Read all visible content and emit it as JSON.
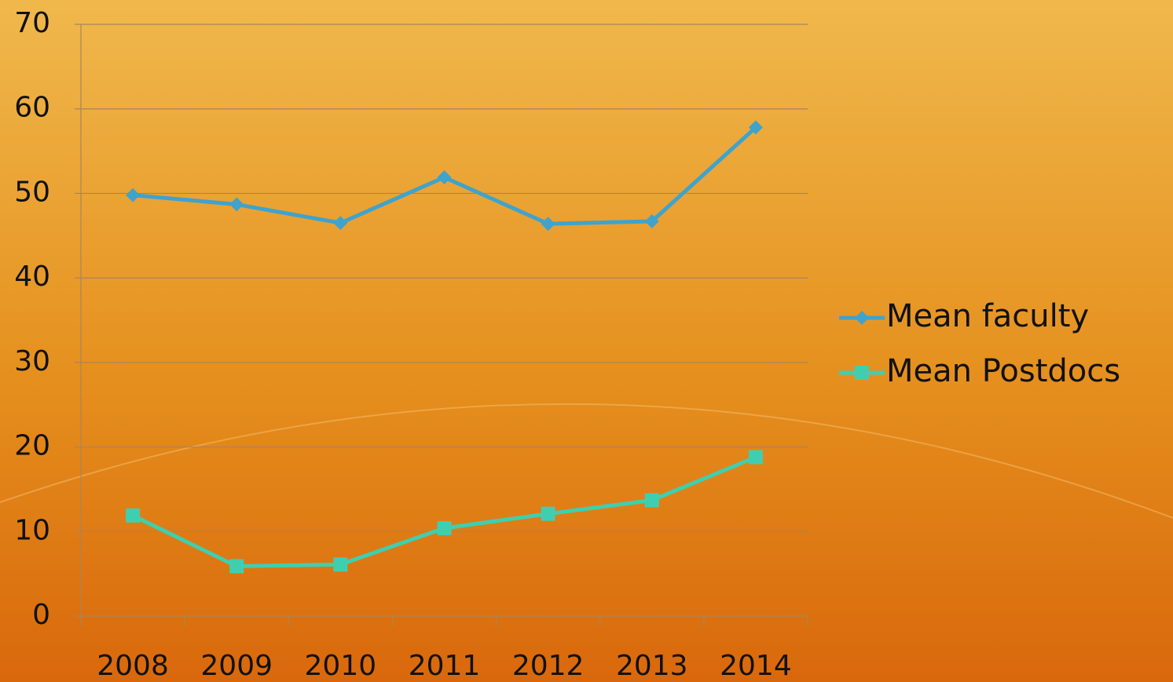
{
  "chart_data": {
    "type": "line",
    "categories": [
      "2008",
      "2009",
      "2010",
      "2011",
      "2012",
      "2013",
      "2014"
    ],
    "series": [
      {
        "name": "Mean faculty",
        "color": "#3fa3cc",
        "marker": "diamond",
        "values": [
          49.8,
          48.7,
          46.5,
          51.9,
          46.4,
          46.7,
          57.8
        ]
      },
      {
        "name": "Mean Postdocs",
        "color": "#3fcfb0",
        "marker": "square",
        "values": [
          11.9,
          5.9,
          6.1,
          10.4,
          12.1,
          13.7,
          18.8
        ]
      }
    ],
    "ylim": [
      0,
      70
    ],
    "yticks": [
      0,
      10,
      20,
      30,
      40,
      50,
      60,
      70
    ],
    "grid": true,
    "legend": "right"
  }
}
